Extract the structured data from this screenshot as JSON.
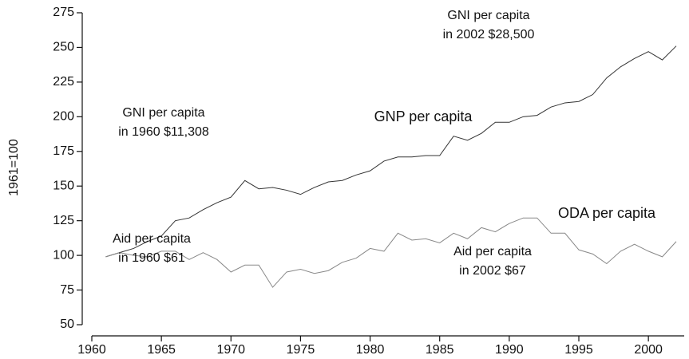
{
  "chart_data": {
    "type": "line",
    "ylabel": "1961=100",
    "x": [
      1961,
      1962,
      1963,
      1964,
      1965,
      1966,
      1967,
      1968,
      1969,
      1970,
      1971,
      1972,
      1973,
      1974,
      1975,
      1976,
      1977,
      1978,
      1979,
      1980,
      1981,
      1982,
      1983,
      1984,
      1985,
      1986,
      1987,
      1988,
      1989,
      1990,
      1991,
      1992,
      1993,
      1994,
      1995,
      1996,
      1997,
      1998,
      1999,
      2000,
      2001,
      2002
    ],
    "series": [
      {
        "name": "GNP per capita",
        "color": "#333333",
        "values": [
          99,
          102,
          105,
          110,
          114,
          125,
          127,
          133,
          138,
          142,
          154,
          148,
          149,
          147,
          144,
          149,
          153,
          154,
          158,
          161,
          168,
          171,
          171,
          172,
          172,
          186,
          183,
          188,
          196,
          196,
          200,
          201,
          207,
          210,
          211,
          216,
          228,
          236,
          242,
          247,
          241,
          251
        ]
      },
      {
        "name": "ODA per capita",
        "color": "#888888",
        "values": [
          99,
          102,
          100,
          99,
          103,
          103,
          97,
          102,
          97,
          88,
          93,
          93,
          77,
          88,
          90,
          87,
          89,
          95,
          98,
          105,
          103,
          116,
          111,
          112,
          109,
          116,
          112,
          120,
          117,
          123,
          127,
          127,
          116,
          116,
          104,
          101,
          94,
          103,
          108,
          103,
          99,
          110
        ]
      }
    ],
    "annotations": [
      [
        "GNI per capita",
        "in 2002 $28,500"
      ],
      [
        "GNI per capita",
        "in 1960 $11,308"
      ],
      [
        "Aid per capita",
        "in 1960 $61"
      ],
      [
        "Aid per capita",
        "in 2002 $67"
      ]
    ],
    "xlim": [
      1960,
      2002
    ],
    "xticks": [
      1960,
      1965,
      1970,
      1975,
      1980,
      1985,
      1990,
      1995,
      2000
    ],
    "ylim": [
      50,
      275
    ],
    "yticks": [
      50,
      75,
      100,
      125,
      150,
      175,
      200,
      225,
      250,
      275
    ],
    "grid": false
  }
}
